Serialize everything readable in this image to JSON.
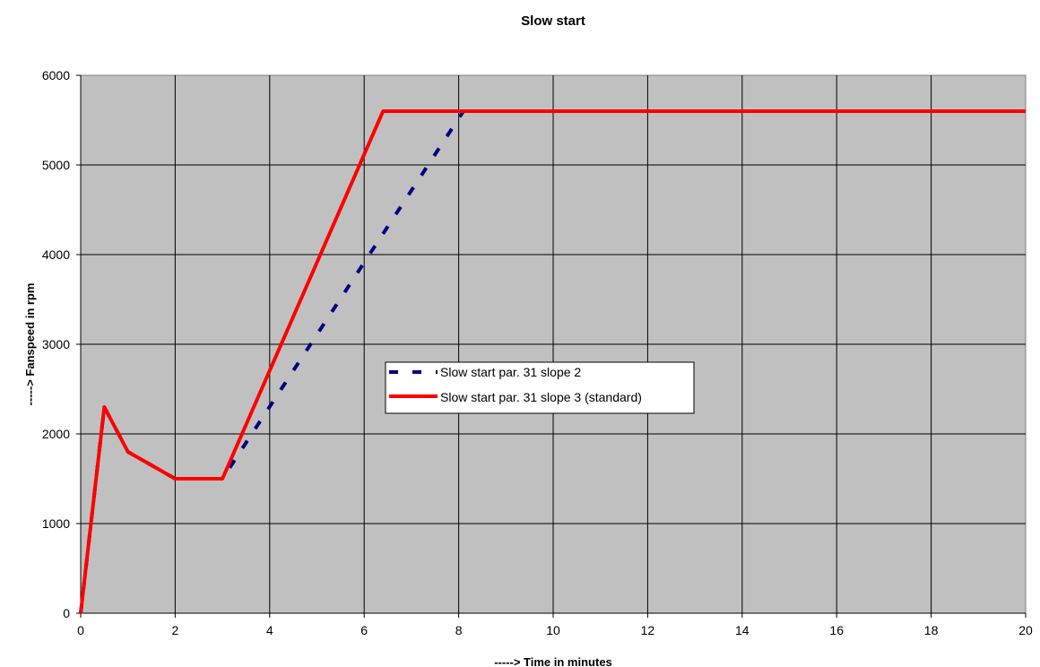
{
  "chart_data": {
    "type": "line",
    "title": "Slow start",
    "xlabel": "-----> Time in minutes",
    "ylabel": "-----> Fanspeed in rpm",
    "xlim": [
      0,
      20
    ],
    "ylim": [
      0,
      6000
    ],
    "x_ticks": [
      "0",
      "2",
      "4",
      "6",
      "8",
      "10",
      "12",
      "14",
      "16",
      "18",
      "20"
    ],
    "y_ticks": [
      "0",
      "1000",
      "2000",
      "3000",
      "4000",
      "5000",
      "6000"
    ],
    "grid": true,
    "plot_background": "#c0c0c0",
    "legend_position": "center",
    "series": [
      {
        "name": "Slow start par. 31 slope 2",
        "color": "#000080",
        "style": "dashed",
        "points": [
          [
            0,
            0
          ],
          [
            0.5,
            2300
          ],
          [
            1,
            1800
          ],
          [
            2,
            1500
          ],
          [
            3,
            1500
          ],
          [
            8.1,
            5600
          ]
        ]
      },
      {
        "name": "Slow start par. 31 slope 3 (standard)",
        "color": "#ff0000",
        "style": "solid",
        "points": [
          [
            0,
            0
          ],
          [
            0.5,
            2300
          ],
          [
            1,
            1800
          ],
          [
            2,
            1500
          ],
          [
            3,
            1500
          ],
          [
            6.4,
            5600
          ],
          [
            20,
            5600
          ]
        ]
      }
    ]
  }
}
